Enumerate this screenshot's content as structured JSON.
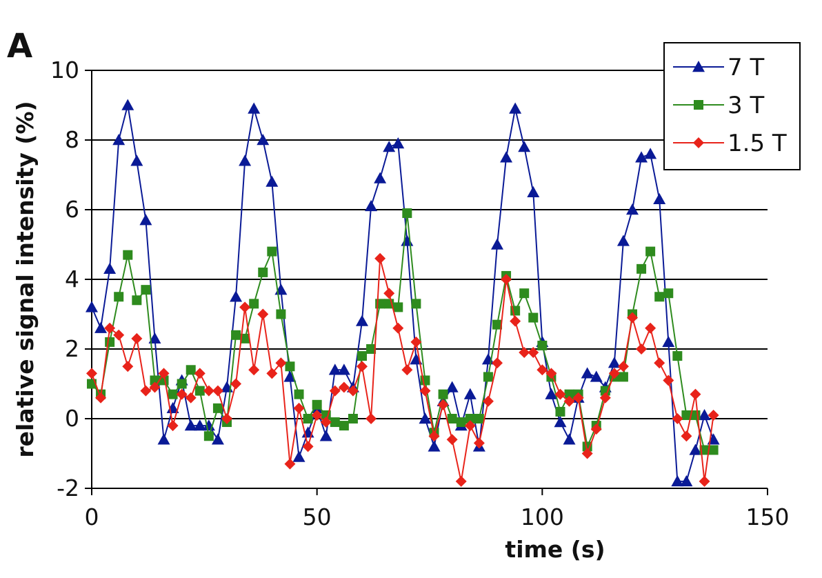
{
  "panel_label": "A",
  "chart_data": {
    "type": "line",
    "title": "",
    "xlabel": "time (s)",
    "ylabel": "relative signal intensity (%)",
    "xlim": [
      0,
      150
    ],
    "ylim": [
      -2,
      10
    ],
    "xticks": [
      0,
      50,
      100,
      150
    ],
    "yticks": [
      -2,
      0,
      2,
      4,
      6,
      8,
      10
    ],
    "grid": "horizontal",
    "legend_position": "top-right",
    "series": [
      {
        "name": "7 T",
        "color": "#0a1a96",
        "marker": "triangle",
        "points": [
          [
            0,
            3.2
          ],
          [
            2,
            2.6
          ],
          [
            4,
            4.3
          ],
          [
            6,
            8.0
          ],
          [
            8,
            9.0
          ],
          [
            10,
            7.4
          ],
          [
            12,
            5.7
          ],
          [
            14,
            2.3
          ],
          [
            16,
            -0.6
          ],
          [
            18,
            0.3
          ],
          [
            20,
            1.1
          ],
          [
            22,
            -0.2
          ],
          [
            24,
            -0.2
          ],
          [
            26,
            -0.2
          ],
          [
            28,
            -0.6
          ],
          [
            30,
            0.9
          ],
          [
            32,
            3.5
          ],
          [
            34,
            7.4
          ],
          [
            36,
            8.9
          ],
          [
            38,
            8.0
          ],
          [
            40,
            6.8
          ],
          [
            42,
            3.7
          ],
          [
            44,
            1.2
          ],
          [
            46,
            -1.1
          ],
          [
            48,
            -0.4
          ],
          [
            50,
            0.3
          ],
          [
            52,
            -0.5
          ],
          [
            54,
            1.4
          ],
          [
            56,
            1.4
          ],
          [
            58,
            0.9
          ],
          [
            60,
            2.8
          ],
          [
            62,
            6.1
          ],
          [
            64,
            6.9
          ],
          [
            66,
            7.8
          ],
          [
            68,
            7.9
          ],
          [
            70,
            5.1
          ],
          [
            72,
            1.7
          ],
          [
            74,
            0.0
          ],
          [
            76,
            -0.8
          ],
          [
            78,
            0.5
          ],
          [
            80,
            0.9
          ],
          [
            82,
            -0.2
          ],
          [
            84,
            0.7
          ],
          [
            86,
            -0.8
          ],
          [
            88,
            1.7
          ],
          [
            90,
            5.0
          ],
          [
            92,
            7.5
          ],
          [
            94,
            8.9
          ],
          [
            96,
            7.8
          ],
          [
            98,
            6.5
          ],
          [
            100,
            2.2
          ],
          [
            102,
            0.7
          ],
          [
            104,
            -0.1
          ],
          [
            106,
            -0.6
          ],
          [
            108,
            0.6
          ],
          [
            110,
            1.3
          ],
          [
            112,
            1.2
          ],
          [
            114,
            0.9
          ],
          [
            116,
            1.6
          ],
          [
            118,
            5.1
          ],
          [
            120,
            6.0
          ],
          [
            122,
            7.5
          ],
          [
            124,
            7.6
          ],
          [
            126,
            6.3
          ],
          [
            128,
            2.2
          ],
          [
            130,
            -1.8
          ],
          [
            132,
            -1.8
          ],
          [
            134,
            -0.9
          ],
          [
            136,
            0.1
          ],
          [
            138,
            -0.6
          ]
        ]
      },
      {
        "name": "3 T",
        "color": "#2e8b1e",
        "marker": "square",
        "points": [
          [
            0,
            1.0
          ],
          [
            2,
            0.7
          ],
          [
            4,
            2.2
          ],
          [
            6,
            3.5
          ],
          [
            8,
            4.7
          ],
          [
            10,
            3.4
          ],
          [
            12,
            3.7
          ],
          [
            14,
            1.1
          ],
          [
            16,
            1.1
          ],
          [
            18,
            0.7
          ],
          [
            20,
            1.0
          ],
          [
            22,
            1.4
          ],
          [
            24,
            0.8
          ],
          [
            26,
            -0.5
          ],
          [
            28,
            0.3
          ],
          [
            30,
            -0.1
          ],
          [
            32,
            2.4
          ],
          [
            34,
            2.3
          ],
          [
            36,
            3.3
          ],
          [
            38,
            4.2
          ],
          [
            40,
            4.8
          ],
          [
            42,
            3.0
          ],
          [
            44,
            1.5
          ],
          [
            46,
            0.7
          ],
          [
            48,
            0.0
          ],
          [
            50,
            0.4
          ],
          [
            52,
            0.1
          ],
          [
            54,
            -0.1
          ],
          [
            56,
            -0.2
          ],
          [
            58,
            0.0
          ],
          [
            60,
            1.8
          ],
          [
            62,
            2.0
          ],
          [
            64,
            3.3
          ],
          [
            66,
            3.3
          ],
          [
            68,
            3.2
          ],
          [
            70,
            5.9
          ],
          [
            72,
            3.3
          ],
          [
            74,
            1.1
          ],
          [
            76,
            -0.4
          ],
          [
            78,
            0.7
          ],
          [
            80,
            0.0
          ],
          [
            82,
            -0.1
          ],
          [
            84,
            0.0
          ],
          [
            86,
            0.0
          ],
          [
            88,
            1.2
          ],
          [
            90,
            2.7
          ],
          [
            92,
            4.1
          ],
          [
            94,
            3.1
          ],
          [
            96,
            3.6
          ],
          [
            98,
            2.9
          ],
          [
            100,
            2.1
          ],
          [
            102,
            1.2
          ],
          [
            104,
            0.2
          ],
          [
            106,
            0.7
          ],
          [
            108,
            0.7
          ],
          [
            110,
            -0.8
          ],
          [
            112,
            -0.2
          ],
          [
            114,
            0.8
          ],
          [
            116,
            1.2
          ],
          [
            118,
            1.2
          ],
          [
            120,
            3.0
          ],
          [
            122,
            4.3
          ],
          [
            124,
            4.8
          ],
          [
            126,
            3.5
          ],
          [
            128,
            3.6
          ],
          [
            130,
            1.8
          ],
          [
            132,
            0.1
          ],
          [
            134,
            0.1
          ],
          [
            136,
            -0.9
          ],
          [
            138,
            -0.9
          ]
        ]
      },
      {
        "name": "1.5 T",
        "color": "#e8231a",
        "marker": "diamond",
        "points": [
          [
            0,
            1.3
          ],
          [
            2,
            0.6
          ],
          [
            4,
            2.6
          ],
          [
            6,
            2.4
          ],
          [
            8,
            1.5
          ],
          [
            10,
            2.3
          ],
          [
            12,
            0.8
          ],
          [
            14,
            0.9
          ],
          [
            16,
            1.3
          ],
          [
            18,
            -0.2
          ],
          [
            20,
            0.7
          ],
          [
            22,
            0.6
          ],
          [
            24,
            1.3
          ],
          [
            26,
            0.8
          ],
          [
            28,
            0.8
          ],
          [
            30,
            0.0
          ],
          [
            32,
            1.0
          ],
          [
            34,
            3.2
          ],
          [
            36,
            1.4
          ],
          [
            38,
            3.0
          ],
          [
            40,
            1.3
          ],
          [
            42,
            1.6
          ],
          [
            44,
            -1.3
          ],
          [
            46,
            0.3
          ],
          [
            48,
            -0.8
          ],
          [
            50,
            0.1
          ],
          [
            52,
            -0.1
          ],
          [
            54,
            0.8
          ],
          [
            56,
            0.9
          ],
          [
            58,
            0.8
          ],
          [
            60,
            1.5
          ],
          [
            62,
            0.0
          ],
          [
            64,
            4.6
          ],
          [
            66,
            3.6
          ],
          [
            68,
            2.6
          ],
          [
            70,
            1.4
          ],
          [
            72,
            2.2
          ],
          [
            74,
            0.8
          ],
          [
            76,
            -0.5
          ],
          [
            78,
            0.4
          ],
          [
            80,
            -0.6
          ],
          [
            82,
            -1.8
          ],
          [
            84,
            -0.2
          ],
          [
            86,
            -0.7
          ],
          [
            88,
            0.5
          ],
          [
            90,
            1.6
          ],
          [
            92,
            4.0
          ],
          [
            94,
            2.8
          ],
          [
            96,
            1.9
          ],
          [
            98,
            1.9
          ],
          [
            100,
            1.4
          ],
          [
            102,
            1.3
          ],
          [
            104,
            0.7
          ],
          [
            106,
            0.5
          ],
          [
            108,
            0.6
          ],
          [
            110,
            -1.0
          ],
          [
            112,
            -0.3
          ],
          [
            114,
            0.6
          ],
          [
            116,
            1.3
          ],
          [
            118,
            1.5
          ],
          [
            120,
            2.9
          ],
          [
            122,
            2.0
          ],
          [
            124,
            2.6
          ],
          [
            126,
            1.6
          ],
          [
            128,
            1.1
          ],
          [
            130,
            0.0
          ],
          [
            132,
            -0.5
          ],
          [
            134,
            0.7
          ],
          [
            136,
            -1.8
          ],
          [
            138,
            0.1
          ]
        ]
      }
    ]
  }
}
